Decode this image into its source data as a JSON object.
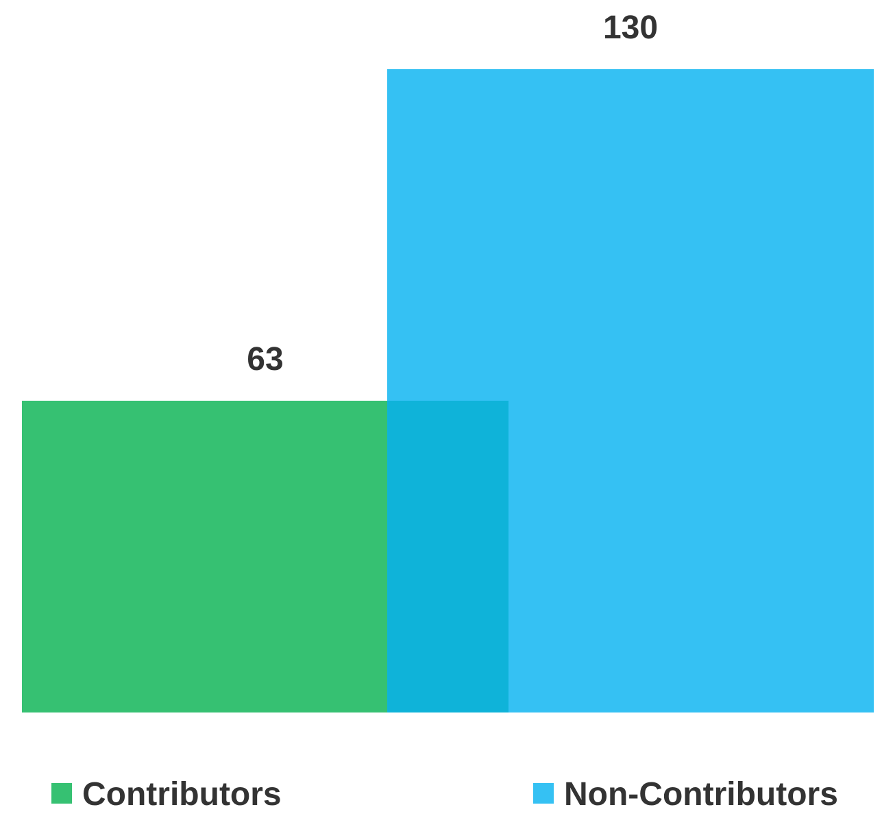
{
  "chart_data": {
    "type": "bar",
    "series": [
      {
        "name": "Contributors",
        "color": "#36c172",
        "values": [
          63
        ]
      },
      {
        "name": "Non-Contributors",
        "color": "#35c1f3",
        "values": [
          130
        ]
      }
    ],
    "overlap_color": "#0fb3d9"
  }
}
